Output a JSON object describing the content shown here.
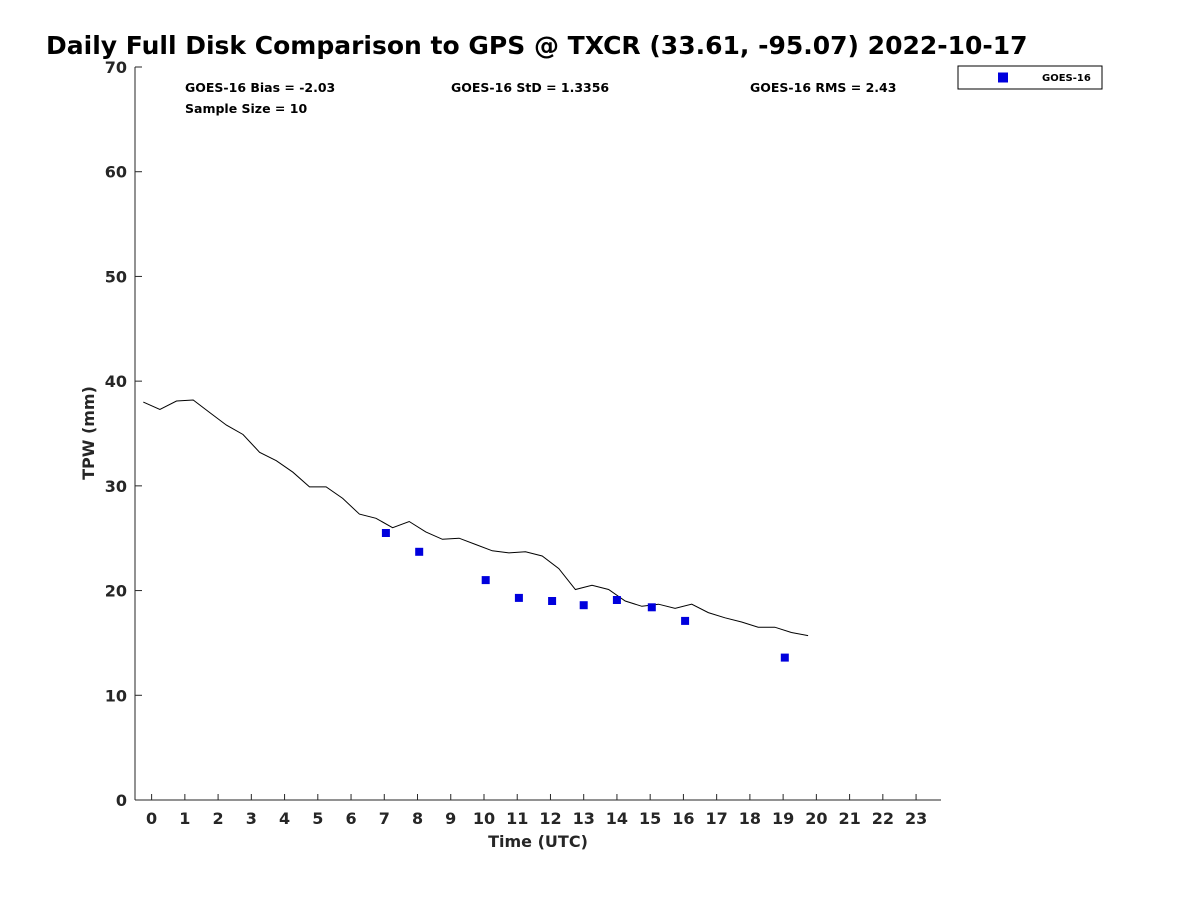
{
  "chart_data": {
    "type": "scatter",
    "title": "Daily Full Disk Comparison to GPS @ TXCR (33.61, -95.07) 2022-10-17",
    "xlabel": "Time (UTC)",
    "ylabel": "TPW (mm)",
    "xlim": [
      -0.5,
      23.75
    ],
    "ylim": [
      0,
      70
    ],
    "x_ticks": [
      "0",
      "1",
      "2",
      "3",
      "4",
      "5",
      "6",
      "7",
      "8",
      "9",
      "10",
      "11",
      "12",
      "13",
      "14",
      "15",
      "16",
      "17",
      "18",
      "19",
      "20",
      "21",
      "22",
      "23"
    ],
    "y_ticks": [
      "0",
      "10",
      "20",
      "30",
      "40",
      "50",
      "60",
      "70"
    ],
    "grid": false,
    "legend_position": "top-right",
    "stats": {
      "bias": "GOES-16 Bias = -2.03",
      "std": "GOES-16 StD = 1.3356",
      "rms": "GOES-16 RMS = 2.43",
      "sample": "Sample Size = 10"
    },
    "series": [
      {
        "name": "GOES-16",
        "type": "scatter",
        "marker": "square",
        "color": "#0000dd",
        "x": [
          7.05,
          8.05,
          10.05,
          11.05,
          12.05,
          13.0,
          14.0,
          15.05,
          16.05,
          19.05
        ],
        "y": [
          25.5,
          23.7,
          21.0,
          19.3,
          19.0,
          18.6,
          19.1,
          18.4,
          17.1,
          13.6
        ]
      },
      {
        "type": "line",
        "color": "#000000",
        "x": [
          -0.25,
          0.25,
          0.75,
          1.25,
          1.75,
          2.25,
          2.75,
          3.25,
          3.75,
          4.25,
          4.75,
          5.25,
          5.75,
          6.25,
          6.75,
          7.25,
          7.75,
          8.25,
          8.75,
          9.25,
          9.75,
          10.25,
          10.75,
          11.25,
          11.75,
          12.25,
          12.75,
          13.25,
          13.75,
          14.25,
          14.75,
          15.25,
          15.75,
          16.25,
          16.75,
          17.25,
          17.75,
          18.25,
          18.75,
          19.25,
          19.75
        ],
        "y": [
          38.0,
          37.3,
          38.1,
          38.2,
          37.0,
          35.8,
          34.9,
          33.2,
          32.4,
          31.3,
          29.9,
          29.9,
          28.8,
          27.3,
          26.9,
          26.0,
          26.6,
          25.6,
          24.9,
          25.0,
          24.4,
          23.8,
          23.6,
          23.7,
          23.3,
          22.1,
          20.1,
          20.5,
          20.1,
          19.0,
          18.5,
          18.7,
          18.3,
          18.7,
          17.9,
          17.4,
          17.0,
          16.5,
          16.5,
          16.0,
          15.7
        ]
      }
    ]
  }
}
